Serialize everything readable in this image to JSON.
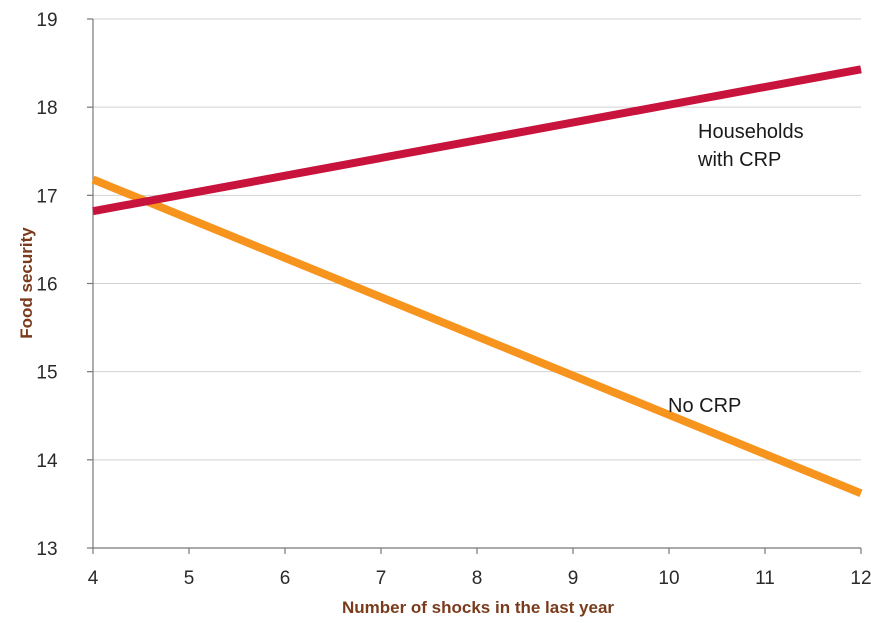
{
  "chart_data": {
    "type": "line",
    "xlabel": "Number of shocks in the last year",
    "ylabel": "Food security",
    "xlim": [
      4,
      12
    ],
    "ylim": [
      13,
      19
    ],
    "xticks": [
      4,
      5,
      6,
      7,
      8,
      9,
      10,
      11,
      12
    ],
    "yticks": [
      13,
      14,
      15,
      16,
      17,
      18,
      19
    ],
    "grid": "horizontal",
    "series": [
      {
        "name": "Households with CRP",
        "label_lines": [
          "Households",
          "with CRP"
        ],
        "color": "#c8143c",
        "x": [
          4,
          12
        ],
        "y": [
          16.82,
          18.43
        ]
      },
      {
        "name": "No CRP",
        "label_lines": [
          "No CRP"
        ],
        "color": "#f7941d",
        "x": [
          4,
          12
        ],
        "y": [
          17.18,
          13.62
        ]
      }
    ]
  }
}
